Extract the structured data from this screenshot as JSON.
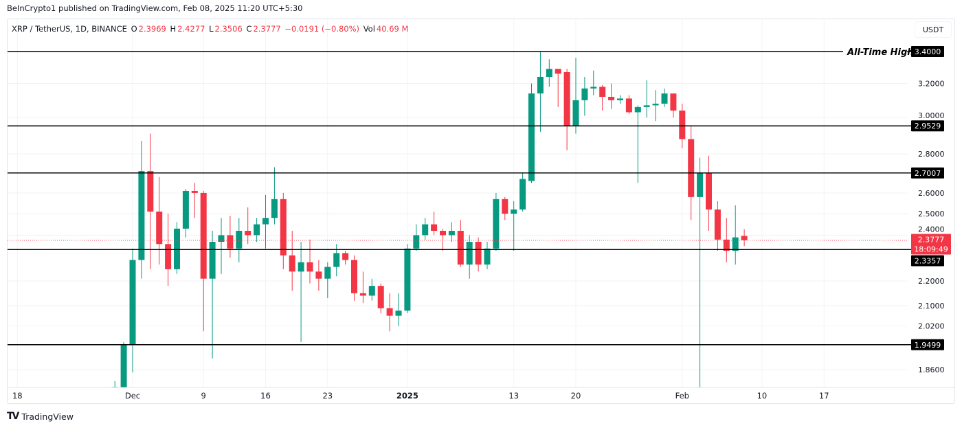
{
  "publisher_line": "BeInCrypto1 published on TradingView.com, Feb 08, 2025 11:20 UTC+5:30",
  "legend": {
    "symbol": "XRP / TetherUS, 1D, BINANCE",
    "o_label": "O",
    "o": "2.3969",
    "h_label": "H",
    "h": "2.4277",
    "l_label": "L",
    "l": "2.3506",
    "c_label": "C",
    "c": "2.3777",
    "change": "−0.0191 (−0.80%)",
    "vol_label": "Vol",
    "vol": "40.69 M"
  },
  "currency_button": "USDT",
  "branding": "TradingView",
  "colors": {
    "up": "#089981",
    "down": "#f23645",
    "level": "#000000",
    "grid": "#f2f3f6"
  },
  "chart_data": {
    "type": "candlestick",
    "scale": "log",
    "ylim": [
      1.81,
      3.52
    ],
    "start_date": "2024-11-29",
    "interval": "1D",
    "yticks": [
      "3.2000",
      "3.0000",
      "2.8000",
      "2.6000",
      "2.5000",
      "2.4000",
      "2.2000",
      "2.1000",
      "2.0200",
      "1.8600"
    ],
    "xticks": [
      {
        "label": "18",
        "day": -11,
        "bold": false
      },
      {
        "label": "Dec",
        "day": 2,
        "bold": false
      },
      {
        "label": "9",
        "day": 10,
        "bold": false
      },
      {
        "label": "16",
        "day": 17,
        "bold": false
      },
      {
        "label": "23",
        "day": 24,
        "bold": false
      },
      {
        "label": "2025",
        "day": 33,
        "bold": true
      },
      {
        "label": "13",
        "day": 45,
        "bold": false
      },
      {
        "label": "20",
        "day": 52,
        "bold": false
      },
      {
        "label": "Feb",
        "day": 64,
        "bold": false
      },
      {
        "label": "10",
        "day": 73,
        "bold": false
      },
      {
        "label": "17",
        "day": 80,
        "bold": false
      }
    ],
    "levels": [
      {
        "price": 3.4,
        "label": "3.4000",
        "annotation": "All-Time High"
      },
      {
        "price": 2.9529,
        "label": "2.9529"
      },
      {
        "price": 2.7007,
        "label": "2.7007"
      },
      {
        "price": 2.3357,
        "label": "2.3357"
      },
      {
        "price": 1.9499,
        "label": "1.9499"
      }
    ],
    "last_price": {
      "price": 2.3777,
      "label": "2.3777",
      "countdown": "18:09:49"
    },
    "ohlc": [
      [
        1.76,
        1.82,
        1.74,
        1.8
      ],
      [
        1.79,
        1.96,
        1.78,
        1.95
      ],
      [
        1.95,
        2.34,
        1.85,
        2.29
      ],
      [
        2.29,
        2.87,
        2.21,
        2.71
      ],
      [
        2.71,
        2.91,
        2.25,
        2.51
      ],
      [
        2.51,
        2.68,
        2.27,
        2.36
      ],
      [
        2.36,
        2.5,
        2.18,
        2.25
      ],
      [
        2.25,
        2.46,
        2.23,
        2.43
      ],
      [
        2.43,
        2.62,
        2.39,
        2.61
      ],
      [
        2.61,
        2.65,
        2.48,
        2.6
      ],
      [
        2.6,
        2.61,
        2.0,
        2.21
      ],
      [
        2.21,
        2.42,
        1.9,
        2.37
      ],
      [
        2.37,
        2.48,
        2.23,
        2.4
      ],
      [
        2.4,
        2.49,
        2.3,
        2.34
      ],
      [
        2.34,
        2.48,
        2.28,
        2.42
      ],
      [
        2.42,
        2.53,
        2.36,
        2.4
      ],
      [
        2.4,
        2.48,
        2.37,
        2.45
      ],
      [
        2.45,
        2.59,
        2.34,
        2.48
      ],
      [
        2.48,
        2.73,
        2.45,
        2.57
      ],
      [
        2.57,
        2.6,
        2.25,
        2.31
      ],
      [
        2.31,
        2.42,
        2.16,
        2.24
      ],
      [
        2.24,
        2.37,
        1.96,
        2.28
      ],
      [
        2.28,
        2.38,
        2.19,
        2.24
      ],
      [
        2.24,
        2.29,
        2.16,
        2.21
      ],
      [
        2.21,
        2.28,
        2.13,
        2.26
      ],
      [
        2.26,
        2.36,
        2.22,
        2.32
      ],
      [
        2.32,
        2.33,
        2.27,
        2.29
      ],
      [
        2.29,
        2.31,
        2.12,
        2.15
      ],
      [
        2.15,
        2.24,
        2.11,
        2.14
      ],
      [
        2.14,
        2.21,
        2.12,
        2.18
      ],
      [
        2.18,
        2.19,
        2.07,
        2.09
      ],
      [
        2.09,
        2.15,
        2.0,
        2.06
      ],
      [
        2.06,
        2.15,
        2.02,
        2.08
      ],
      [
        2.08,
        2.36,
        2.07,
        2.34
      ],
      [
        2.34,
        2.45,
        2.33,
        2.4
      ],
      [
        2.4,
        2.48,
        2.38,
        2.45
      ],
      [
        2.45,
        2.51,
        2.4,
        2.42
      ],
      [
        2.42,
        2.43,
        2.33,
        2.4
      ],
      [
        2.4,
        2.46,
        2.37,
        2.42
      ],
      [
        2.42,
        2.47,
        2.26,
        2.27
      ],
      [
        2.27,
        2.4,
        2.21,
        2.37
      ],
      [
        2.37,
        2.39,
        2.24,
        2.27
      ],
      [
        2.27,
        2.37,
        2.25,
        2.34
      ],
      [
        2.34,
        2.6,
        2.33,
        2.57
      ],
      [
        2.57,
        2.58,
        2.47,
        2.5
      ],
      [
        2.5,
        2.56,
        2.33,
        2.52
      ],
      [
        2.52,
        2.7,
        2.51,
        2.67
      ],
      [
        2.66,
        3.2,
        2.65,
        3.14
      ],
      [
        3.14,
        3.4,
        2.92,
        3.24
      ],
      [
        3.24,
        3.35,
        3.18,
        3.29
      ],
      [
        3.29,
        3.29,
        3.06,
        3.26
      ],
      [
        3.27,
        3.29,
        2.82,
        2.95
      ],
      [
        2.95,
        3.36,
        2.91,
        3.1
      ],
      [
        3.1,
        3.24,
        3.01,
        3.17
      ],
      [
        3.17,
        3.28,
        3.13,
        3.18
      ],
      [
        3.18,
        3.19,
        3.04,
        3.12
      ],
      [
        3.12,
        3.2,
        3.05,
        3.1
      ],
      [
        3.1,
        3.13,
        3.08,
        3.11
      ],
      [
        3.11,
        3.13,
        3.02,
        3.03
      ],
      [
        3.03,
        3.07,
        2.65,
        3.06
      ],
      [
        3.06,
        3.22,
        3.0,
        3.07
      ],
      [
        3.07,
        3.16,
        2.98,
        3.08
      ],
      [
        3.08,
        3.17,
        3.06,
        3.14
      ],
      [
        3.14,
        3.14,
        3.0,
        3.04
      ],
      [
        3.04,
        3.08,
        2.83,
        2.88
      ],
      [
        2.88,
        2.95,
        2.47,
        2.58
      ],
      [
        2.58,
        2.78,
        1.77,
        2.7
      ],
      [
        2.7,
        2.79,
        2.42,
        2.52
      ],
      [
        2.52,
        2.56,
        2.33,
        2.38
      ],
      [
        2.38,
        2.48,
        2.28,
        2.33
      ],
      [
        2.33,
        2.54,
        2.27,
        2.39
      ],
      [
        2.3969,
        2.4277,
        2.3506,
        2.3777
      ]
    ]
  }
}
